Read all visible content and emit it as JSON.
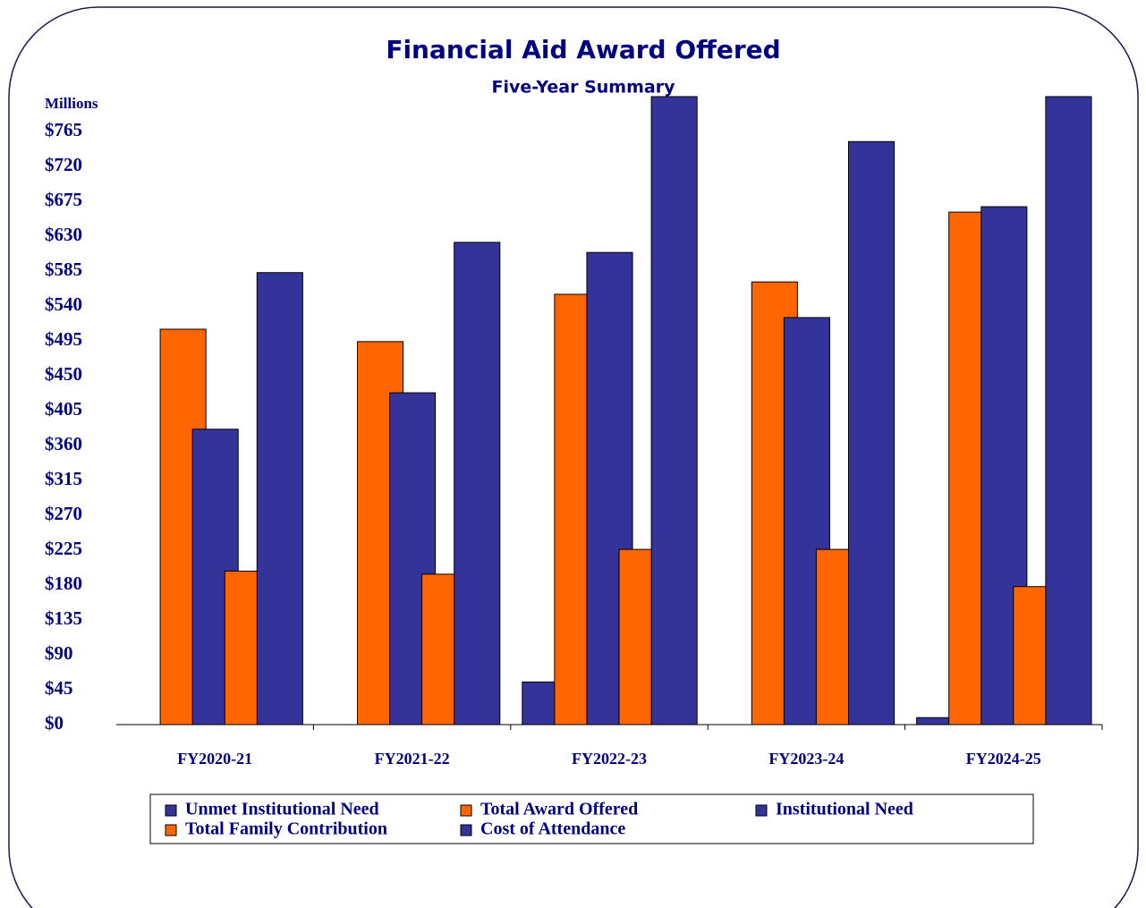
{
  "chart_data": {
    "type": "bar",
    "title": "Financial Aid Award Offered",
    "subtitle": "Five-Year Summary",
    "y_axis_label": "Millions",
    "categories": [
      "FY2020-21",
      "FY2021-22",
      "FY2022-23",
      "FY2023-24",
      "FY2024-25"
    ],
    "series": [
      {
        "name": "Unmet Institutional Need",
        "color": "#333399",
        "values": [
          0,
          0,
          55,
          0,
          9
        ]
      },
      {
        "name": "Total Award Offered",
        "color": "#ff6600",
        "values": [
          510,
          494,
          555,
          571,
          661
        ]
      },
      {
        "name": "Institutional Need",
        "color": "#333399",
        "values": [
          381,
          428,
          609,
          525,
          668
        ]
      },
      {
        "name": "Total Family Contribution",
        "color": "#ff6600",
        "values": [
          198,
          194,
          226,
          226,
          178
        ]
      },
      {
        "name": "Cost of Attendance",
        "color": "#333399",
        "values": [
          583,
          622,
          810,
          752,
          810
        ]
      }
    ],
    "ylim": [
      0,
      810
    ],
    "yticks": [
      {
        "value": 0,
        "label": "$0"
      },
      {
        "value": 45,
        "label": "$45"
      },
      {
        "value": 90,
        "label": "$90"
      },
      {
        "value": 135,
        "label": "$135"
      },
      {
        "value": 180,
        "label": "$180"
      },
      {
        "value": 225,
        "label": "$225"
      },
      {
        "value": 270,
        "label": "$270"
      },
      {
        "value": 315,
        "label": "$315"
      },
      {
        "value": 360,
        "label": "$360"
      },
      {
        "value": 405,
        "label": "$405"
      },
      {
        "value": 450,
        "label": "$450"
      },
      {
        "value": 495,
        "label": "$495"
      },
      {
        "value": 540,
        "label": "$540"
      },
      {
        "value": 585,
        "label": "$585"
      },
      {
        "value": 630,
        "label": "$630"
      },
      {
        "value": 675,
        "label": "$675"
      },
      {
        "value": 720,
        "label": "$720"
      },
      {
        "value": 765,
        "label": "$765"
      }
    ],
    "grid": false,
    "legend": "bottom"
  }
}
